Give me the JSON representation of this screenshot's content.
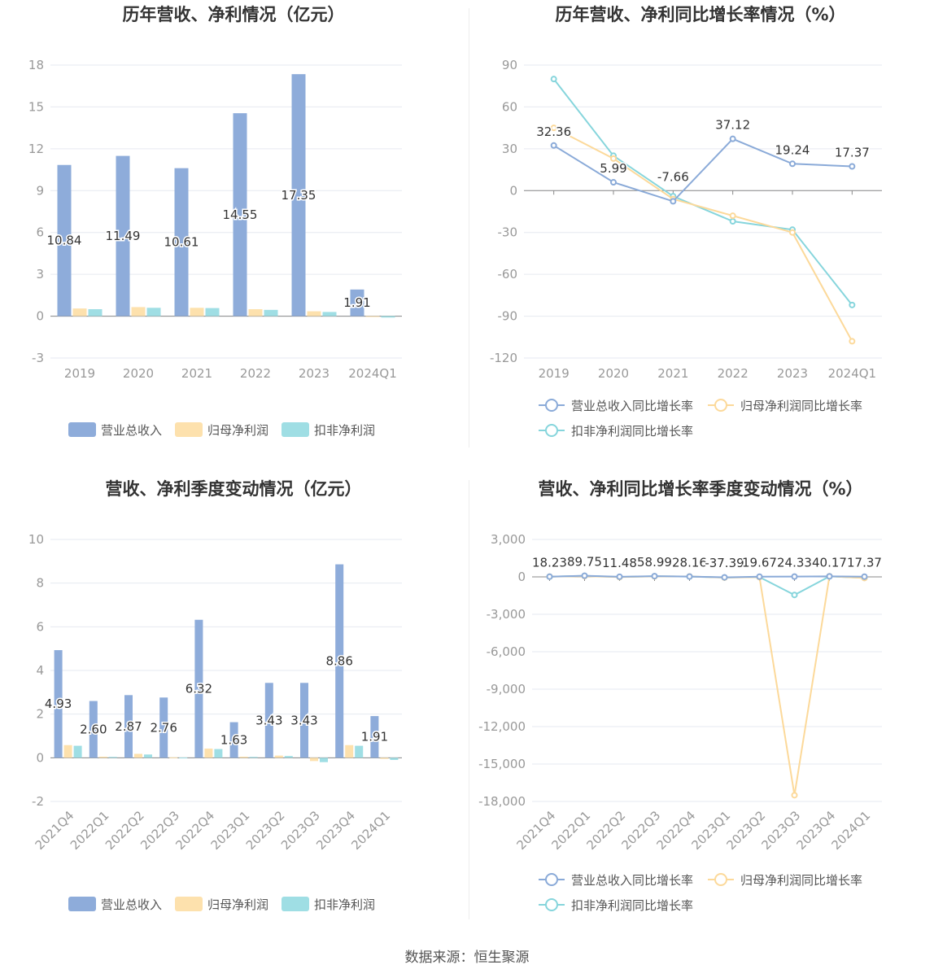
{
  "colors": {
    "revenue": "#8eacda",
    "parent_profit": "#fde1ad",
    "deducted_profit": "#9fdee4",
    "revenue_line": "#8aaad8",
    "parent_line": "#fcd99a",
    "deducted_line": "#86d5dc",
    "grid": "#e6e9f0",
    "axis": "#888888"
  },
  "source": "数据来源：恒生聚源",
  "chart_data": [
    {
      "id": "annual_values",
      "type": "bar",
      "title": "历年营收、净利情况（亿元）",
      "categories": [
        "2019",
        "2020",
        "2021",
        "2022",
        "2023",
        "2024Q1"
      ],
      "ylim": [
        -3,
        18
      ],
      "yticks": [
        -3,
        0,
        3,
        6,
        9,
        12,
        15,
        18
      ],
      "grid": true,
      "legend_position": "bottom",
      "series": [
        {
          "name": "营业总收入",
          "values": [
            10.84,
            11.49,
            10.61,
            14.55,
            17.35,
            1.91
          ]
        },
        {
          "name": "归母净利润",
          "values": [
            0.55,
            0.65,
            0.6,
            0.5,
            0.35,
            -0.05
          ]
        },
        {
          "name": "扣非净利润",
          "values": [
            0.5,
            0.6,
            0.58,
            0.45,
            0.3,
            -0.1
          ]
        }
      ],
      "data_labels": [
        "10.84",
        "11.49",
        "10.61",
        "14.55",
        "17.35",
        "1.91"
      ]
    },
    {
      "id": "annual_growth",
      "type": "line",
      "title": "历年营收、净利同比增长率情况（%）",
      "categories": [
        "2019",
        "2020",
        "2021",
        "2022",
        "2023",
        "2024Q1"
      ],
      "ylim": [
        -120,
        90
      ],
      "yticks": [
        -120,
        -90,
        -60,
        -30,
        0,
        30,
        60,
        90
      ],
      "grid": true,
      "legend_position": "bottom",
      "series": [
        {
          "name": "营业总收入同比增长率",
          "values": [
            32.36,
            5.99,
            -7.66,
            37.12,
            19.24,
            17.37
          ]
        },
        {
          "name": "归母净利润同比增长率",
          "values": [
            45,
            23,
            -6,
            -18,
            -30,
            -108
          ]
        },
        {
          "name": "扣非净利润同比增长率",
          "values": [
            80,
            25,
            -4,
            -22,
            -28,
            -82
          ]
        }
      ],
      "data_labels": [
        "32.36",
        "5.99",
        "-7.66",
        "37.12",
        "19.24",
        "17.37"
      ]
    },
    {
      "id": "quarterly_values",
      "type": "bar",
      "title": "营收、净利季度变动情况（亿元）",
      "categories": [
        "2021Q4",
        "2022Q1",
        "2022Q2",
        "2022Q3",
        "2022Q4",
        "2023Q1",
        "2023Q2",
        "2023Q3",
        "2023Q4",
        "2024Q1"
      ],
      "ylim": [
        -2,
        10
      ],
      "yticks": [
        -2,
        0,
        2,
        4,
        6,
        8,
        10
      ],
      "grid": true,
      "legend_position": "bottom",
      "series": [
        {
          "name": "营业总收入",
          "values": [
            4.93,
            2.6,
            2.87,
            2.76,
            6.32,
            1.63,
            3.43,
            3.43,
            8.86,
            1.91
          ]
        },
        {
          "name": "归母净利润",
          "values": [
            0.58,
            0.05,
            0.18,
            0.02,
            0.42,
            0.05,
            0.1,
            -0.15,
            0.58,
            -0.05
          ]
        },
        {
          "name": "扣非净利润",
          "values": [
            0.55,
            0.04,
            0.15,
            0.01,
            0.4,
            0.04,
            0.08,
            -0.2,
            0.55,
            -0.1
          ]
        }
      ],
      "data_labels": [
        "4.93",
        "2.60",
        "2.87",
        "2.76",
        "6.32",
        "1.63",
        "3.43",
        "3.43",
        "8.86",
        "1.91"
      ]
    },
    {
      "id": "quarterly_growth",
      "type": "line",
      "title": "营收、净利同比增长率季度变动情况（%）",
      "categories": [
        "2021Q4",
        "2022Q1",
        "2022Q2",
        "2022Q3",
        "2022Q4",
        "2023Q1",
        "2023Q2",
        "2023Q3",
        "2023Q4",
        "2024Q1"
      ],
      "ylim": [
        -18000,
        3000
      ],
      "yticks": [
        -18000,
        -15000,
        -12000,
        -9000,
        -6000,
        -3000,
        0,
        3000
      ],
      "ytick_labels": [
        "-18,000",
        "-15,000",
        "-12,000",
        "-9,000",
        "-6,000",
        "-3,000",
        "0",
        "3,000"
      ],
      "grid": true,
      "legend_position": "bottom",
      "series": [
        {
          "name": "营业总收入同比增长率",
          "values": [
            18.23,
            89.75,
            11.48,
            58.99,
            28.16,
            -37.39,
            19.67,
            24.33,
            40.17,
            17.37
          ]
        },
        {
          "name": "归母净利润同比增长率",
          "values": [
            20,
            60,
            -20,
            40,
            30,
            -60,
            -20,
            -17500,
            50,
            -90
          ]
        },
        {
          "name": "扣非净利润同比增长率",
          "values": [
            15,
            80,
            -10,
            50,
            25,
            -50,
            -15,
            -1450,
            40,
            -80
          ]
        }
      ],
      "data_labels": [
        "18.23",
        "89.75",
        "11.48",
        "58.99",
        "28.16",
        "-37.39",
        "19.67",
        "24.33",
        "40.17",
        "17.37"
      ]
    }
  ]
}
